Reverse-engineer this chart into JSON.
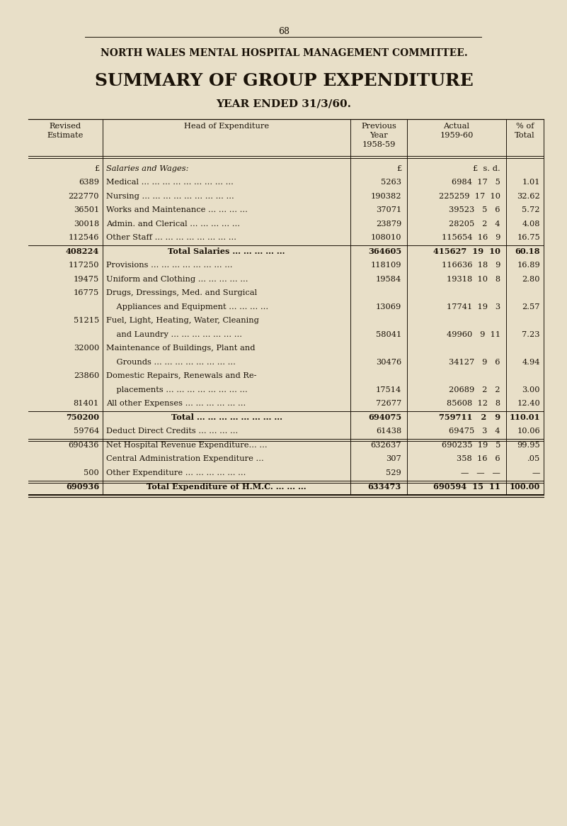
{
  "page_number": "68",
  "title1": "NORTH WALES MENTAL HOSPITAL MANAGEMENT COMMITTEE.",
  "title2": "SUMMARY OF GROUP EXPENDITURE",
  "title3": "YEAR ENDED 31/3/60.",
  "bg_color": "#e8dfc8",
  "table_bg": "#e8dfc8",
  "text_color": "#1a1208",
  "col_header_revised": "Revised\nEstimate",
  "col_header_head": "Head of Expenditure",
  "col_header_prev": "Previous\nYear\n1958-59",
  "col_header_actual": "Actual\n1959-60",
  "col_header_pct": "% of\nTotal",
  "rows": [
    {
      "revised": "£",
      "head": "Salaries and Wages:",
      "prev": "£",
      "actual": "£  s. d.",
      "pct": "",
      "bold": false,
      "italic_head": true,
      "indent": false,
      "sep_after": false,
      "double_sep_after": false
    },
    {
      "revised": "6389",
      "head": "Medical ... ... ... ... ... ... ... ... ...",
      "prev": "5263",
      "actual": "6984  17   5",
      "pct": "1.01",
      "bold": false,
      "italic_head": false,
      "indent": true,
      "sep_after": false,
      "double_sep_after": false
    },
    {
      "revised": "222770",
      "head": "Nursing ... ... ... ... ... ... ... ... ...",
      "prev": "190382",
      "actual": "225259  17  10",
      "pct": "32.62",
      "bold": false,
      "italic_head": false,
      "indent": true,
      "sep_after": false,
      "double_sep_after": false
    },
    {
      "revised": "36501",
      "head": "Works and Maintenance ... ... ... ...",
      "prev": "37071",
      "actual": "39523   5   6",
      "pct": "5.72",
      "bold": false,
      "italic_head": false,
      "indent": true,
      "sep_after": false,
      "double_sep_after": false
    },
    {
      "revised": "30018",
      "head": "Admin. and Clerical ... ... ... ... ...",
      "prev": "23879",
      "actual": "28205   2   4",
      "pct": "4.08",
      "bold": false,
      "italic_head": false,
      "indent": true,
      "sep_after": false,
      "double_sep_after": false
    },
    {
      "revised": "112546",
      "head": "Other Staff ... ... ... ... ... ... ... ...",
      "prev": "108010",
      "actual": "115654  16   9",
      "pct": "16.75",
      "bold": false,
      "italic_head": false,
      "indent": true,
      "sep_after": true,
      "double_sep_after": false
    },
    {
      "revised": "408224",
      "head": "Total Salaries ... ... ... ... ...",
      "prev": "364605",
      "actual": "415627  19  10",
      "pct": "60.18",
      "bold": true,
      "italic_head": false,
      "indent": false,
      "sep_after": false,
      "double_sep_after": false
    },
    {
      "revised": "117250",
      "head": "Provisions ... ... ... ... ... ... ... ...",
      "prev": "118109",
      "actual": "116636  18   9",
      "pct": "16.89",
      "bold": false,
      "italic_head": false,
      "indent": false,
      "sep_after": false,
      "double_sep_after": false
    },
    {
      "revised": "19475",
      "head": "Uniform and Clothing ... ... ... ... ...",
      "prev": "19584",
      "actual": "19318  10   8",
      "pct": "2.80",
      "bold": false,
      "italic_head": false,
      "indent": false,
      "sep_after": false,
      "double_sep_after": false
    },
    {
      "revised": "16775",
      "head": "Drugs, Dressings, Med. and Surgical",
      "prev": "",
      "actual": "",
      "pct": "",
      "bold": false,
      "italic_head": false,
      "indent": false,
      "sep_after": false,
      "double_sep_after": false
    },
    {
      "revised": "",
      "head": "    Appliances and Equipment ... ... ... ...",
      "prev": "13069",
      "actual": "17741  19   3",
      "pct": "2.57",
      "bold": false,
      "italic_head": false,
      "indent": false,
      "sep_after": false,
      "double_sep_after": false
    },
    {
      "revised": "51215",
      "head": "Fuel, Light, Heating, Water, Cleaning",
      "prev": "",
      "actual": "",
      "pct": "",
      "bold": false,
      "italic_head": false,
      "indent": false,
      "sep_after": false,
      "double_sep_after": false
    },
    {
      "revised": "",
      "head": "    and Laundry ... ... ... ... ... ... ...",
      "prev": "58041",
      "actual": "49960   9  11",
      "pct": "7.23",
      "bold": false,
      "italic_head": false,
      "indent": false,
      "sep_after": false,
      "double_sep_after": false
    },
    {
      "revised": "32000",
      "head": "Maintenance of Buildings, Plant and",
      "prev": "",
      "actual": "",
      "pct": "",
      "bold": false,
      "italic_head": false,
      "indent": false,
      "sep_after": false,
      "double_sep_after": false
    },
    {
      "revised": "",
      "head": "    Grounds ... ... ... ... ... ... ... ...",
      "prev": "30476",
      "actual": "34127   9   6",
      "pct": "4.94",
      "bold": false,
      "italic_head": false,
      "indent": false,
      "sep_after": false,
      "double_sep_after": false
    },
    {
      "revised": "23860",
      "head": "Domestic Repairs, Renewals and Re-",
      "prev": "",
      "actual": "",
      "pct": "",
      "bold": false,
      "italic_head": false,
      "indent": false,
      "sep_after": false,
      "double_sep_after": false
    },
    {
      "revised": "",
      "head": "    placements ... ... ... ... ... ... ... ...",
      "prev": "17514",
      "actual": "20689   2   2",
      "pct": "3.00",
      "bold": false,
      "italic_head": false,
      "indent": false,
      "sep_after": false,
      "double_sep_after": false
    },
    {
      "revised": "81401",
      "head": "All other Expenses ... ... ... ... ... ...",
      "prev": "72677",
      "actual": "85608  12   8",
      "pct": "12.40",
      "bold": false,
      "italic_head": false,
      "indent": false,
      "sep_after": true,
      "double_sep_after": false
    },
    {
      "revised": "750200",
      "head": "Total ... ... ... ... ... ... ... ...",
      "prev": "694075",
      "actual": "759711   2   9",
      "pct": "110.01",
      "bold": true,
      "italic_head": false,
      "indent": false,
      "sep_after": false,
      "double_sep_after": false
    },
    {
      "revised": "59764",
      "head": "Deduct Direct Credits ... ... ... ...",
      "prev": "61438",
      "actual": "69475   3   4",
      "pct": "10.06",
      "bold": false,
      "italic_head": false,
      "indent": false,
      "sep_after": true,
      "double_sep_after": true
    },
    {
      "revised": "690436",
      "head": "Net Hospital Revenue Expenditure... ...",
      "prev": "632637",
      "actual": "690235  19   5",
      "pct": "99.95",
      "bold": false,
      "italic_head": false,
      "indent": false,
      "sep_after": false,
      "double_sep_after": false
    },
    {
      "revised": "",
      "head": "Central Administration Expenditure ...",
      "prev": "307",
      "actual": "358  16   6",
      "pct": ".05",
      "bold": false,
      "italic_head": false,
      "indent": false,
      "sep_after": false,
      "double_sep_after": false
    },
    {
      "revised": "500",
      "head": "Other Expenditure ... ... ... ... ... ...",
      "prev": "529",
      "actual": "—   —   —",
      "pct": "—",
      "bold": false,
      "italic_head": false,
      "indent": false,
      "sep_after": true,
      "double_sep_after": true
    },
    {
      "revised": "690936",
      "head": "Total Expenditure of H.M.C. ... ... ...",
      "prev": "633473",
      "actual": "690594  15  11",
      "pct": "100.00",
      "bold": true,
      "italic_head": false,
      "indent": false,
      "sep_after": true,
      "double_sep_after": false
    }
  ]
}
